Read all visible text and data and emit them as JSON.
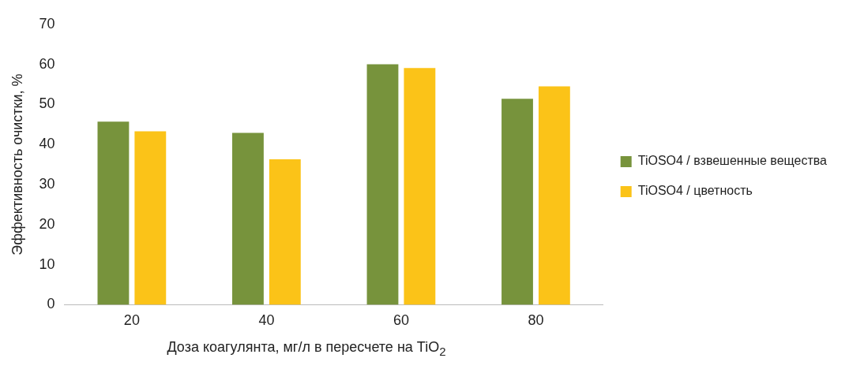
{
  "chart_data": {
    "type": "bar",
    "xlabel": "Доза коагулянта, мг/л в пересчете на TiO$_{2}$",
    "ylabel": "Эффективность очистки, %",
    "categories": [
      "20",
      "40",
      "60",
      "80"
    ],
    "series": [
      {
        "name": "TiOSO4 / взвешенные вещества",
        "color": "#77933c",
        "values": [
          45.7,
          42.9,
          60.0,
          51.4
        ]
      },
      {
        "name": "TiOSO4 / цветность",
        "color": "#fbc318",
        "values": [
          43.3,
          36.3,
          59.1,
          54.5
        ]
      }
    ],
    "ylim": [
      0,
      70
    ],
    "yticks": [
      0,
      10,
      20,
      30,
      40,
      50,
      60,
      70
    ],
    "grid": false,
    "legend": "right"
  }
}
